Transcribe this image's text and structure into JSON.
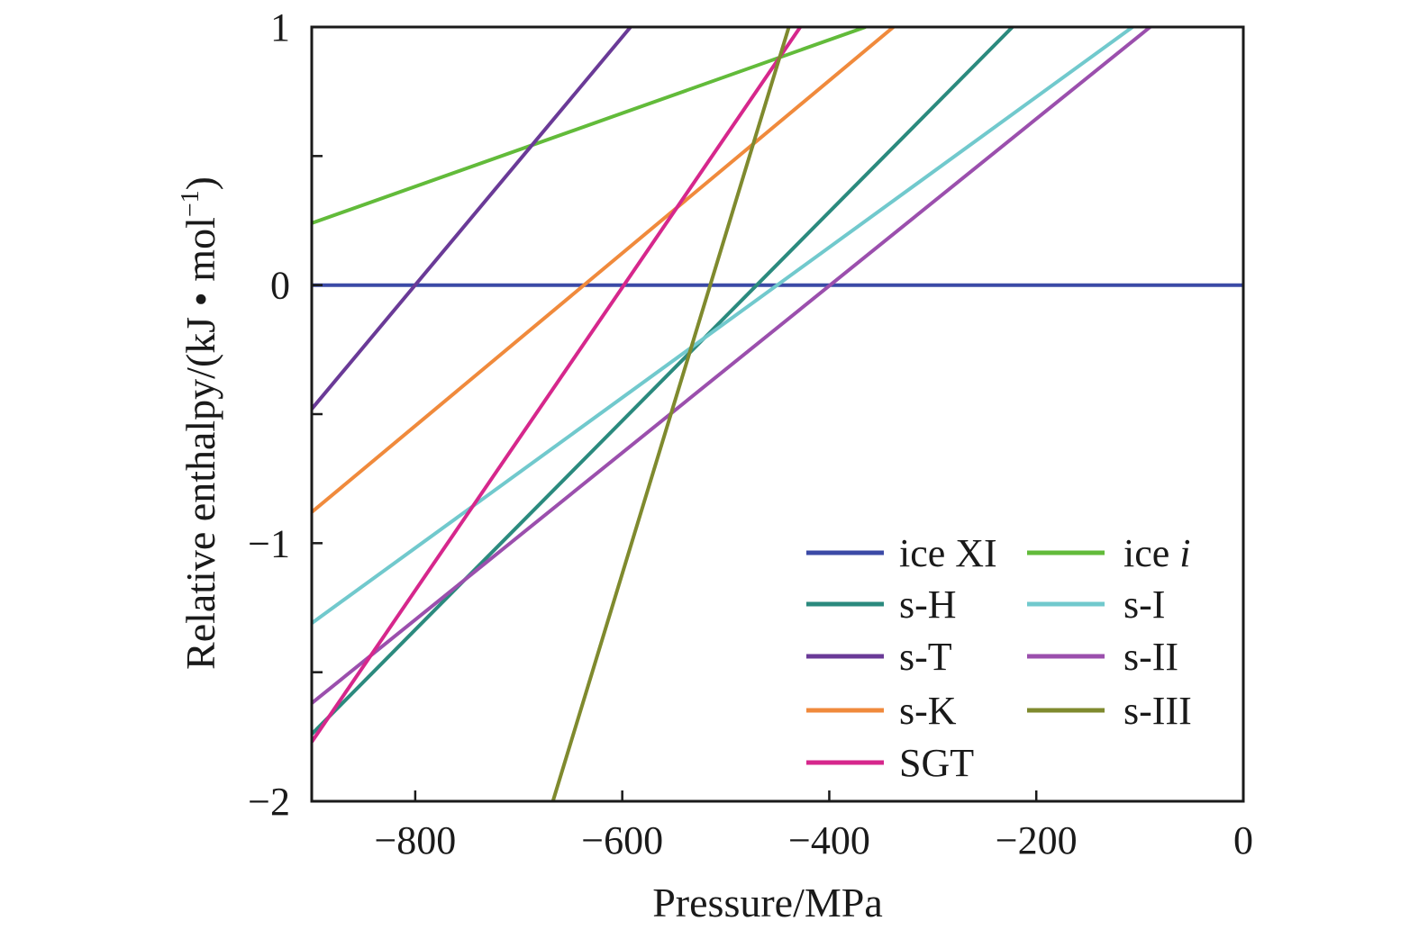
{
  "chart_data": {
    "type": "line",
    "title": "",
    "xlabel": "Pressure/MPa",
    "ylabel": "Relative enthalpy/(kJ • mol⁻¹)",
    "ylabel_main": "Relative enthalpy/(kJ • mol",
    "ylabel_sup": "−1",
    "ylabel_close": ")",
    "xlim": [
      -900,
      0
    ],
    "ylim": [
      -2,
      1
    ],
    "x_ticks": [
      -800,
      -600,
      -400,
      -200,
      0
    ],
    "x_tick_labels": [
      "−800",
      "−600",
      "−400",
      "−200",
      "0"
    ],
    "y_ticks": [
      -2,
      -1.5,
      -1,
      -0.5,
      0,
      0.5,
      1
    ],
    "y_tick_labels": [
      "−2",
      "",
      "−1",
      "",
      "0",
      "",
      "1"
    ],
    "legend_position": "bottom-right",
    "series": [
      {
        "name": "ice XI",
        "color": "#3b4aa6",
        "x": [
          -900,
          0
        ],
        "values": [
          0,
          0
        ]
      },
      {
        "name": "ice i",
        "color": "#62bb3a",
        "x": [
          -900,
          -365
        ],
        "values": [
          0.24,
          1.0
        ]
      },
      {
        "name": "s-H",
        "color": "#2b8a7e",
        "x": [
          -900,
          -223
        ],
        "values": [
          -1.74,
          1.0
        ]
      },
      {
        "name": "s-I",
        "color": "#71c9cd",
        "x": [
          -900,
          -107
        ],
        "values": [
          -1.31,
          1.0
        ]
      },
      {
        "name": "s-T",
        "color": "#6a3a97",
        "x": [
          -900,
          -592
        ],
        "values": [
          -0.48,
          1.0
        ]
      },
      {
        "name": "s-II",
        "color": "#9b4fad",
        "x": [
          -900,
          -90
        ],
        "values": [
          -1.62,
          1.0
        ]
      },
      {
        "name": "s-K",
        "color": "#f08a3c",
        "x": [
          -900,
          -338
        ],
        "values": [
          -0.88,
          1.0
        ]
      },
      {
        "name": "SGT",
        "color": "#d6278c",
        "x": [
          -900,
          -428
        ],
        "values": [
          -1.77,
          1.0
        ]
      },
      {
        "name": "s-III",
        "color": "#7f8a2e",
        "x": [
          -667,
          -439
        ],
        "values": [
          -2.0,
          1.0
        ]
      }
    ],
    "legend": {
      "left": [
        "ice XI",
        "s-H",
        "s-T",
        "s-K",
        "SGT"
      ],
      "right": [
        "ice i",
        "s-I",
        "s-II",
        "s-III"
      ],
      "ice_i_main": "ice",
      "ice_i_italic": "i"
    }
  }
}
